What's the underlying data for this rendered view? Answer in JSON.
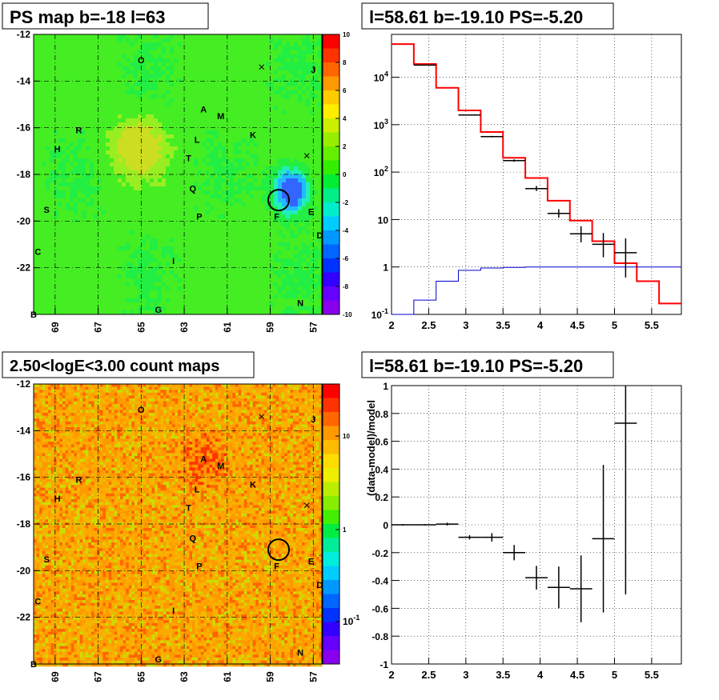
{
  "panels": {
    "ps_map": {
      "title": "PS map b=-18 l=63",
      "y_ticks": [
        "-12",
        "-14",
        "-16",
        "-18",
        "-20",
        "-22"
      ],
      "x_ticks": [
        "69",
        "67",
        "65",
        "63",
        "61",
        "59",
        "57"
      ],
      "colorbar_ticks": [
        "10",
        "8",
        "6",
        "4",
        "2",
        "0",
        "-2",
        "-4",
        "-6",
        "-8",
        "-10"
      ]
    },
    "count_map": {
      "title": "2.50<logE<3.00 count maps",
      "y_ticks": [
        "-12",
        "-14",
        "-16",
        "-18",
        "-20",
        "-22"
      ],
      "x_ticks": [
        "69",
        "67",
        "65",
        "63",
        "61",
        "59",
        "57"
      ],
      "colorbar_ticks": [
        "10",
        "1",
        "10^-1"
      ]
    },
    "spectrum": {
      "title": "l=58.61 b=-19.10 PS=-5.20"
    },
    "residual": {
      "title": "l=58.61 b=-19.10 PS=-5.20",
      "ylabel": "(data-model)/model"
    }
  },
  "source_labels": [
    {
      "label": "O",
      "l": 65.0,
      "b": -13.1
    },
    {
      "label": "J",
      "l": 57.0,
      "b": -13.5
    },
    {
      "label": "A",
      "l": 62.1,
      "b": -15.2
    },
    {
      "label": "M",
      "l": 61.3,
      "b": -15.5
    },
    {
      "label": "K",
      "l": 59.8,
      "b": -16.3
    },
    {
      "label": "R",
      "l": 67.9,
      "b": -16.1
    },
    {
      "label": "H",
      "l": 68.9,
      "b": -16.9
    },
    {
      "label": "L",
      "l": 62.4,
      "b": -16.5
    },
    {
      "label": "T",
      "l": 62.8,
      "b": -17.3
    },
    {
      "label": "Q",
      "l": 62.6,
      "b": -18.6
    },
    {
      "label": "S",
      "l": 69.4,
      "b": -19.5
    },
    {
      "label": "P",
      "l": 62.3,
      "b": -19.8
    },
    {
      "label": "F",
      "l": 58.7,
      "b": -19.8
    },
    {
      "label": "E",
      "l": 57.1,
      "b": -19.6
    },
    {
      "label": "D",
      "l": 56.7,
      "b": -20.6
    },
    {
      "label": "C",
      "l": 69.8,
      "b": -21.3
    },
    {
      "label": "I",
      "l": 63.5,
      "b": -21.7
    },
    {
      "label": "N",
      "l": 57.6,
      "b": -23.5
    },
    {
      "label": "G",
      "l": 64.2,
      "b": -23.8
    },
    {
      "label": "B",
      "l": 70.0,
      "b": -24.0
    }
  ],
  "markers_x": [
    {
      "l": 59.4,
      "b": -13.4
    },
    {
      "l": 57.3,
      "b": -17.2
    }
  ],
  "circle": {
    "l": 58.61,
    "b": -19.1
  },
  "ps_blob_colors": {
    "field": "#33ee22",
    "bright": "#ccdd22",
    "cold": "#3366ff"
  },
  "count_colors": {
    "field": "#ff9900",
    "warm": "#ff3300"
  },
  "chart_data": [
    {
      "type": "line",
      "panel": "spectrum",
      "xscale": "linear",
      "yscale": "log",
      "xlim": [
        2,
        5.9
      ],
      "ylim": [
        0.1,
        80000
      ],
      "x_ticks": [
        2,
        2.5,
        3,
        3.5,
        4,
        4.5,
        5,
        5.5
      ],
      "y_ticks": [
        0.1,
        1,
        10,
        100,
        1000,
        10000
      ],
      "y_tick_labels": [
        "10^-1",
        "1",
        "10",
        "10^2",
        "10^3",
        "10^4"
      ],
      "x_tick_labels": [
        "2",
        "2.5",
        "3",
        "3.5",
        "4",
        "4.5",
        "5",
        "5.5"
      ],
      "series": [
        {
          "style": "step",
          "color": "#ff0000",
          "edges": [
            2,
            2.3,
            2.6,
            2.9,
            3.2,
            3.5,
            3.8,
            4.1,
            4.4,
            4.7,
            5.0,
            5.3,
            5.6,
            5.9
          ],
          "values": [
            50000,
            19000,
            6000,
            2000,
            700,
            200,
            75,
            25,
            9.5,
            3.5,
            1.2,
            0.5,
            0.17
          ]
        },
        {
          "style": "step",
          "color": "#0000cc",
          "edges": [
            2,
            2.3,
            2.6,
            2.9,
            3.2,
            3.5,
            3.8,
            4.1,
            4.4,
            4.7,
            5.0,
            5.3,
            5.6,
            5.9
          ],
          "values": [
            0.09,
            0.2,
            0.5,
            0.85,
            0.95,
            0.98,
            1.0,
            1.0,
            1.0,
            1.0,
            1.0,
            1.0,
            1.0
          ]
        },
        {
          "style": "errorbars",
          "color": "#000000",
          "points": [
            {
              "x": 2.45,
              "y": 18000,
              "xerr": 0.15,
              "ylo": 17800,
              "yhi": 18200
            },
            {
              "x": 3.05,
              "y": 1600,
              "xerr": 0.15,
              "ylo": 1560,
              "yhi": 1640
            },
            {
              "x": 3.35,
              "y": 560,
              "xerr": 0.15,
              "ylo": 540,
              "yhi": 580
            },
            {
              "x": 3.65,
              "y": 175,
              "xerr": 0.15,
              "ylo": 165,
              "yhi": 185
            },
            {
              "x": 3.95,
              "y": 45,
              "xerr": 0.15,
              "ylo": 40,
              "yhi": 51
            },
            {
              "x": 4.25,
              "y": 13.5,
              "xerr": 0.15,
              "ylo": 11,
              "yhi": 16.5
            },
            {
              "x": 4.55,
              "y": 5.0,
              "xerr": 0.15,
              "ylo": 3.3,
              "yhi": 7.2
            },
            {
              "x": 4.85,
              "y": 3.0,
              "xerr": 0.15,
              "ylo": 1.6,
              "yhi": 5.2
            },
            {
              "x": 5.15,
              "y": 2.0,
              "xerr": 0.15,
              "ylo": 0.6,
              "yhi": 4.0
            }
          ]
        }
      ]
    },
    {
      "type": "scatter",
      "panel": "residual",
      "xlim": [
        2,
        5.9
      ],
      "ylim": [
        -1,
        1
      ],
      "x_ticks": [
        2,
        2.5,
        3,
        3.5,
        4,
        4.5,
        5,
        5.5
      ],
      "y_ticks": [
        -1,
        -0.8,
        -0.6,
        -0.4,
        -0.2,
        0,
        0.2,
        0.4,
        0.6,
        0.8,
        1
      ],
      "x_tick_labels": [
        "2",
        "2.5",
        "3",
        "3.5",
        "4",
        "4.5",
        "5",
        "5.5"
      ],
      "y_tick_labels": [
        "-1",
        "-0.8",
        "-0.6",
        "-0.4",
        "-0.2",
        "0",
        "0.2",
        "0.4",
        "0.6",
        "0.8",
        "1"
      ],
      "ylabel": "(data-model)/model",
      "points": [
        {
          "x": 2.15,
          "y": 0.0,
          "xerr": 0.15,
          "yerr": 0.005
        },
        {
          "x": 2.45,
          "y": 0.0,
          "xerr": 0.15,
          "yerr": 0.005
        },
        {
          "x": 2.75,
          "y": 0.005,
          "xerr": 0.15,
          "yerr": 0.01
        },
        {
          "x": 3.05,
          "y": -0.09,
          "xerr": 0.15,
          "yerr": 0.015
        },
        {
          "x": 3.35,
          "y": -0.09,
          "xerr": 0.15,
          "yerr": 0.03
        },
        {
          "x": 3.65,
          "y": -0.2,
          "xerr": 0.15,
          "yerr": 0.055
        },
        {
          "x": 3.95,
          "y": -0.38,
          "xerr": 0.15,
          "yerr": 0.085
        },
        {
          "x": 4.25,
          "y": -0.45,
          "xerr": 0.15,
          "yerr": 0.15
        },
        {
          "x": 4.55,
          "y": -0.46,
          "xerr": 0.15,
          "yerr": 0.24
        },
        {
          "x": 4.85,
          "y": -0.1,
          "xerr": 0.15,
          "yerr": 0.53
        },
        {
          "x": 5.15,
          "y": 0.73,
          "xerr": 0.15,
          "yerr": 1.23
        }
      ]
    }
  ]
}
